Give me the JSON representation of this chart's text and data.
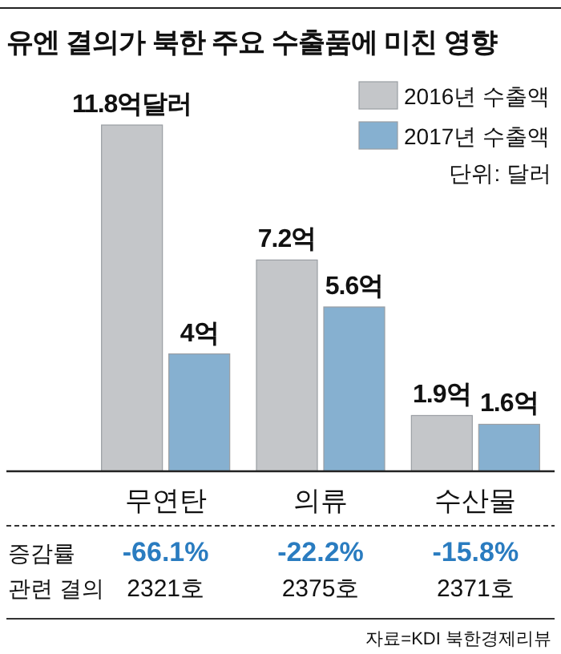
{
  "chart_data": {
    "type": "bar",
    "title": "유엔 결의가 북한 주요 수출품에 미친 영향",
    "categories": [
      "무연탄",
      "의류",
      "수산물"
    ],
    "series": [
      {
        "name": "2016년 수출액",
        "color": "#c4c6c9",
        "values": [
          11.8,
          7.2,
          1.9
        ],
        "value_labels": [
          "11.8억달러",
          "7.2억",
          "1.9억"
        ]
      },
      {
        "name": "2017년 수출액",
        "color": "#86b0d0",
        "values": [
          4,
          5.6,
          1.6
        ],
        "value_labels": [
          "4억",
          "5.6억",
          "1.6억"
        ]
      }
    ],
    "legend": "top right",
    "annotations": [
      "단위: 달러",
      "증감률",
      "-66.1%",
      "-22.2%",
      "-15.8%",
      "관련 결의",
      "2321호",
      "2375호",
      "2371호",
      "자료=KDI 북한경제리뷰"
    ]
  }
}
